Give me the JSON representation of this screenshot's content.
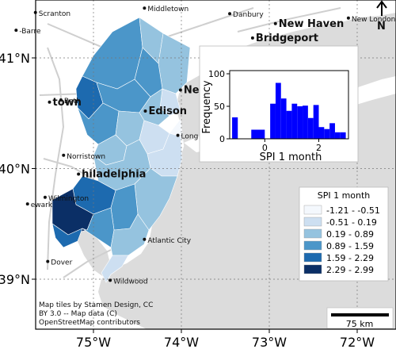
{
  "map": {
    "lat_ticks": [
      {
        "lat": 41,
        "label": "41°N"
      },
      {
        "lat": 40,
        "label": "40°N"
      },
      {
        "lat": 39,
        "label": "39°N"
      }
    ],
    "lon_ticks": [
      {
        "lon": -75,
        "label": "75°W"
      },
      {
        "lon": -74,
        "label": "74°W"
      },
      {
        "lon": -73,
        "label": "73°W"
      },
      {
        "lon": -72,
        "label": "72°W"
      }
    ],
    "north_label": "N",
    "scale_bar": {
      "label": "75 km"
    },
    "credits": [
      "Map tiles by Stamen Design, CC",
      "BY 3.0 -- Map data (C)",
      "OpenStreetMap contributors"
    ],
    "places": [
      {
        "name": "Scranton",
        "lon": -75.66,
        "lat": 41.41,
        "style": "city"
      },
      {
        "name": "Middletown",
        "lon": -74.42,
        "lat": 41.45,
        "style": "city"
      },
      {
        "name": "Danbury",
        "lon": -73.45,
        "lat": 41.4,
        "style": "city"
      },
      {
        "name": "New Haven",
        "lon": -72.93,
        "lat": 41.31,
        "style": "city-big"
      },
      {
        "name": "New London",
        "lon": -72.1,
        "lat": 41.36,
        "style": "city"
      },
      {
        "name": "Bridgeport",
        "lon": -73.19,
        "lat": 41.18,
        "style": "city-big"
      },
      {
        "name": "-Barre",
        "lon": -75.88,
        "lat": 41.25,
        "style": "city"
      },
      {
        "name": "town",
        "lon": -75.5,
        "lat": 40.6,
        "style": "city-big"
      },
      {
        "name": "Beth",
        "lon": -75.37,
        "lat": 40.62,
        "style": "city"
      },
      {
        "name": "New York",
        "lon": -74.01,
        "lat": 40.71,
        "style": "city-big"
      },
      {
        "name": "Edison",
        "lon": -74.41,
        "lat": 40.52,
        "style": "city-big"
      },
      {
        "name": "Long",
        "lon": -74.04,
        "lat": 40.3,
        "style": "city"
      },
      {
        "name": "Norristown",
        "lon": -75.34,
        "lat": 40.12,
        "style": "city"
      },
      {
        "name": "hiladelphia",
        "lon": -75.17,
        "lat": 39.95,
        "style": "city-big"
      },
      {
        "name": "Wilmington",
        "lon": -75.55,
        "lat": 39.74,
        "style": "city"
      },
      {
        "name": "ewark",
        "lon": -75.75,
        "lat": 39.68,
        "style": "city"
      },
      {
        "name": "Atlantic City",
        "lon": -74.42,
        "lat": 39.36,
        "style": "city"
      },
      {
        "name": "Dover",
        "lon": -75.52,
        "lat": 39.16,
        "style": "city"
      },
      {
        "name": "Wildwood",
        "lon": -74.81,
        "lat": 38.99,
        "style": "city"
      }
    ]
  },
  "legend": {
    "title": "SPI 1 month",
    "items": [
      {
        "label": "-1.21 - -0.51",
        "color": "#f4f8fd"
      },
      {
        "label": "-0.51 -  0.19",
        "color": "#cddff1"
      },
      {
        "label": " 0.19 -  0.89",
        "color": "#95c3df"
      },
      {
        "label": " 0.89 -  1.59",
        "color": "#4b96c9"
      },
      {
        "label": " 1.59 -  2.29",
        "color": "#1d6aaf"
      },
      {
        "label": " 2.29 -  2.99",
        "color": "#0b2f66"
      }
    ]
  },
  "chart_data": {
    "type": "bar",
    "xlabel": "SPI 1 month",
    "ylabel": "Frequency",
    "xlim": [
      -1.3,
      3.1
    ],
    "ylim": [
      0,
      100
    ],
    "yticks": [
      0,
      50,
      100
    ],
    "xticks": [
      0,
      2
    ],
    "color": "#0000ff",
    "bins": [
      {
        "x0": -1.21,
        "x1": -1.0,
        "count": 33
      },
      {
        "x0": -1.0,
        "x1": -0.5,
        "count": 0
      },
      {
        "x0": -0.5,
        "x1": 0.0,
        "count": 14
      },
      {
        "x0": 0.0,
        "x1": 0.2,
        "count": 0
      },
      {
        "x0": 0.2,
        "x1": 0.4,
        "count": 54
      },
      {
        "x0": 0.4,
        "x1": 0.6,
        "count": 86
      },
      {
        "x0": 0.6,
        "x1": 0.8,
        "count": 62
      },
      {
        "x0": 0.8,
        "x1": 1.0,
        "count": 43
      },
      {
        "x0": 1.0,
        "x1": 1.2,
        "count": 54
      },
      {
        "x0": 1.2,
        "x1": 1.4,
        "count": 50
      },
      {
        "x0": 1.4,
        "x1": 1.6,
        "count": 51
      },
      {
        "x0": 1.6,
        "x1": 1.8,
        "count": 32
      },
      {
        "x0": 1.8,
        "x1": 2.0,
        "count": 52
      },
      {
        "x0": 2.0,
        "x1": 2.2,
        "count": 18
      },
      {
        "x0": 2.2,
        "x1": 2.4,
        "count": 15
      },
      {
        "x0": 2.4,
        "x1": 2.6,
        "count": 24
      },
      {
        "x0": 2.6,
        "x1": 2.8,
        "count": 10
      },
      {
        "x0": 2.8,
        "x1": 3.0,
        "count": 10
      }
    ]
  }
}
